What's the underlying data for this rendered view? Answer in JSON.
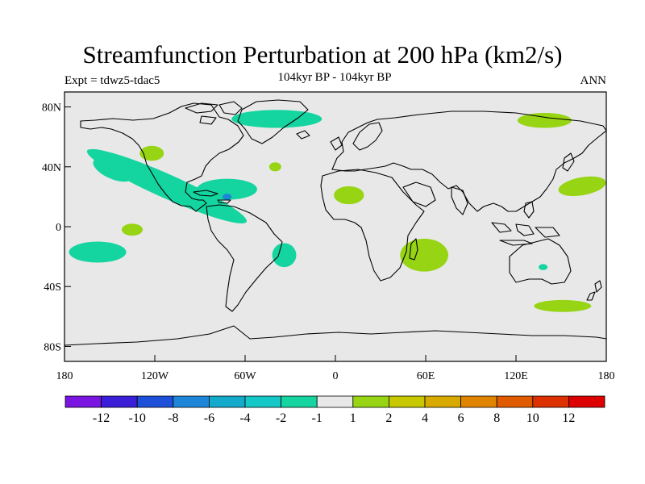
{
  "title": "Streamfunction Perturbation at 200 hPa (km2/s)",
  "subtitle": "104kyr BP - 104kyr BP",
  "expt_label": "Expt = tdwz5-tdac5",
  "period": "ANN",
  "map": {
    "lon_range": [
      -180,
      180
    ],
    "lat_range": [
      -90,
      90
    ],
    "ocean_color": "#e8e8e8",
    "lat_ticks": [
      {
        "value": 80,
        "label": "80N"
      },
      {
        "value": 40,
        "label": "40N"
      },
      {
        "value": 0,
        "label": "0"
      },
      {
        "value": -40,
        "label": "40S"
      },
      {
        "value": -80,
        "label": "80S"
      }
    ],
    "lon_ticks": [
      {
        "value": -180,
        "label": "180"
      },
      {
        "value": -120,
        "label": "120W"
      },
      {
        "value": -60,
        "label": "60W"
      },
      {
        "value": 0,
        "label": "0"
      },
      {
        "value": 60,
        "label": "60E"
      },
      {
        "value": 120,
        "label": "120E"
      },
      {
        "value": 180,
        "label": "180"
      }
    ]
  },
  "colorbar": {
    "colors": [
      "#7a14e0",
      "#3a1ed8",
      "#1e4fd8",
      "#1e86d8",
      "#14aacc",
      "#14c8c8",
      "#14d4a0",
      "#e8e8e8",
      "#96d414",
      "#c8c800",
      "#d8aa00",
      "#e08400",
      "#e05a00",
      "#dc3000",
      "#dc0000"
    ],
    "labels": [
      "-12",
      "-10",
      "-8",
      "-6",
      "-4",
      "-2",
      "-1",
      "1",
      "2",
      "4",
      "6",
      "8",
      "10",
      "12"
    ]
  },
  "anomalies": [
    {
      "lon": -112,
      "lat": 27,
      "rx": 58,
      "ry": 8,
      "rot": 24,
      "color": "#14d4a0"
    },
    {
      "lon": -148,
      "lat": 38,
      "rx": 14,
      "ry": 6,
      "rot": 24,
      "color": "#14d4a0"
    },
    {
      "lon": -72,
      "lat": 25,
      "rx": 20,
      "ry": 7,
      "rot": 0,
      "color": "#14d4a0"
    },
    {
      "lon": -39,
      "lat": 72,
      "rx": 30,
      "ry": 6,
      "rot": 0,
      "color": "#14d4a0"
    },
    {
      "lon": -158,
      "lat": -17,
      "rx": 19,
      "ry": 7,
      "rot": 0,
      "color": "#14d4a0"
    },
    {
      "lon": -34,
      "lat": -19,
      "rx": 8,
      "ry": 8,
      "rot": 0,
      "color": "#14d4a0"
    },
    {
      "lon": 138,
      "lat": -27,
      "rx": 3,
      "ry": 2,
      "rot": 0,
      "color": "#14d4a0"
    },
    {
      "lon": -122,
      "lat": 49,
      "rx": 8,
      "ry": 5,
      "rot": 0,
      "color": "#96d414"
    },
    {
      "lon": -40,
      "lat": 40,
      "rx": 4,
      "ry": 3,
      "rot": 0,
      "color": "#96d414"
    },
    {
      "lon": -135,
      "lat": -2,
      "rx": 7,
      "ry": 4,
      "rot": 0,
      "color": "#96d414"
    },
    {
      "lon": 9,
      "lat": 21,
      "rx": 10,
      "ry": 6,
      "rot": 0,
      "color": "#96d414"
    },
    {
      "lon": 59,
      "lat": -19,
      "rx": 16,
      "ry": 11,
      "rot": 0,
      "color": "#96d414"
    },
    {
      "lon": 139,
      "lat": 71,
      "rx": 18,
      "ry": 5,
      "rot": 0,
      "color": "#96d414"
    },
    {
      "lon": 164,
      "lat": 27,
      "rx": 16,
      "ry": 6,
      "rot": -10,
      "color": "#96d414"
    },
    {
      "lon": 151,
      "lat": -53,
      "rx": 19,
      "ry": 4,
      "rot": 0,
      "color": "#96d414"
    },
    {
      "lon": -72,
      "lat": 20,
      "rx": 3,
      "ry": 2,
      "rot": 0,
      "color": "#1e86d8"
    }
  ]
}
